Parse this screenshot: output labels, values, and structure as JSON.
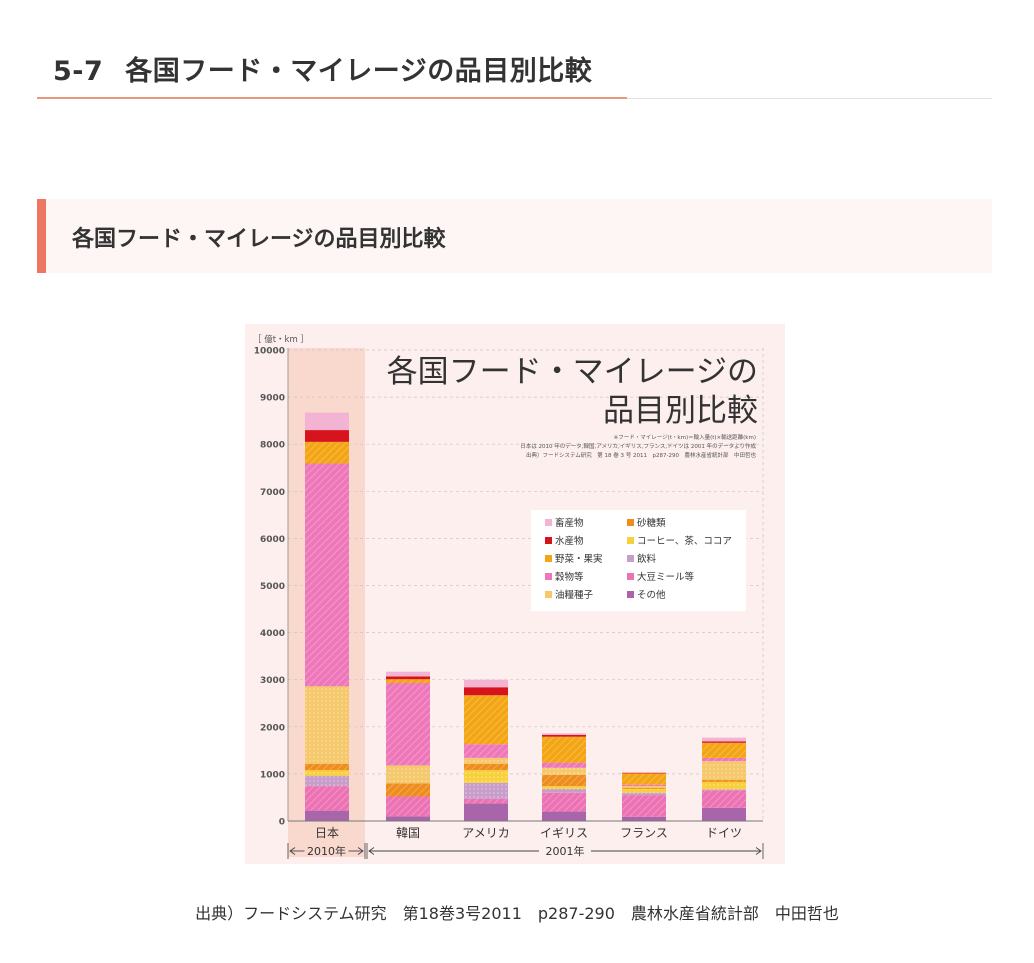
{
  "header": {
    "section_number": "5-7",
    "title": "各国フード・マイレージの品目別比較"
  },
  "subheading": "各国フード・マイレージの品目別比較",
  "caption": "出典）フードシステム研究　第18巻3号2011　p287-290　農林水産省統計部　中田哲也",
  "chart_data": {
    "type": "bar",
    "stacked": true,
    "title_line1": "各国フード・マイレージの",
    "title_line2": "品目別比較",
    "notes": [
      "※フード・マイレージ(t・km)＝輸入量(t)×輸送距離(km)",
      "日本は 2010 年のデータ,韓国,アメリカ,イギリス,フランス,ドイツは 2001 年のデータより作成",
      "出典）フードシステム研究　第 18 巻 3 号 2011　p287-290　農林水産省統計部　中田哲也"
    ],
    "y_unit": "［ 億t・km ］",
    "ylim": [
      0,
      10000
    ],
    "yticks": [
      0,
      1000,
      2000,
      3000,
      4000,
      5000,
      6000,
      7000,
      8000,
      9000,
      10000
    ],
    "categories": [
      "日本",
      "韓国",
      "アメリカ",
      "イギリス",
      "フランス",
      "ドイツ"
    ],
    "period_labels": [
      {
        "label": "2010年",
        "from": 0,
        "to": 0
      },
      {
        "label": "2001年",
        "from": 1,
        "to": 5
      }
    ],
    "highlight_category": 0,
    "grid": true,
    "legend_position": "right",
    "legend": [
      "畜産物",
      "砂糖類",
      "水産物",
      "コーヒー、茶、ココア",
      "野菜・果実",
      "飲料",
      "穀物等",
      "大豆ミール等",
      "油糧種子",
      "その他"
    ],
    "series": [
      {
        "name": "その他",
        "color": "#a965a9",
        "values": [
          220,
          100,
          370,
          200,
          90,
          280
        ]
      },
      {
        "name": "大豆ミール等",
        "color": "#ec72b4",
        "values": [
          520,
          420,
          100,
          400,
          460,
          370
        ]
      },
      {
        "name": "飲料",
        "color": "#c79dc9",
        "values": [
          220,
          0,
          340,
          80,
          50,
          20
        ]
      },
      {
        "name": "コーヒー、茶、ココア",
        "color": "#f7d03c",
        "values": [
          120,
          0,
          270,
          60,
          80,
          160
        ]
      },
      {
        "name": "砂糖類",
        "color": "#ee8d1e",
        "values": [
          130,
          280,
          130,
          240,
          20,
          40
        ]
      },
      {
        "name": "油糧種子",
        "color": "#f6c86c",
        "values": [
          1650,
          380,
          130,
          150,
          40,
          400
        ]
      },
      {
        "name": "穀物等",
        "color": "#ee77b9",
        "values": [
          4730,
          1750,
          290,
          110,
          30,
          70
        ]
      },
      {
        "name": "野菜・果実",
        "color": "#f3a513",
        "values": [
          460,
          80,
          1040,
          550,
          240,
          320
        ]
      },
      {
        "name": "水産物",
        "color": "#d7141e",
        "values": [
          250,
          60,
          170,
          40,
          10,
          30
        ]
      },
      {
        "name": "畜産物",
        "color": "#f3b3d3",
        "values": [
          370,
          100,
          160,
          30,
          20,
          80
        ]
      }
    ]
  }
}
